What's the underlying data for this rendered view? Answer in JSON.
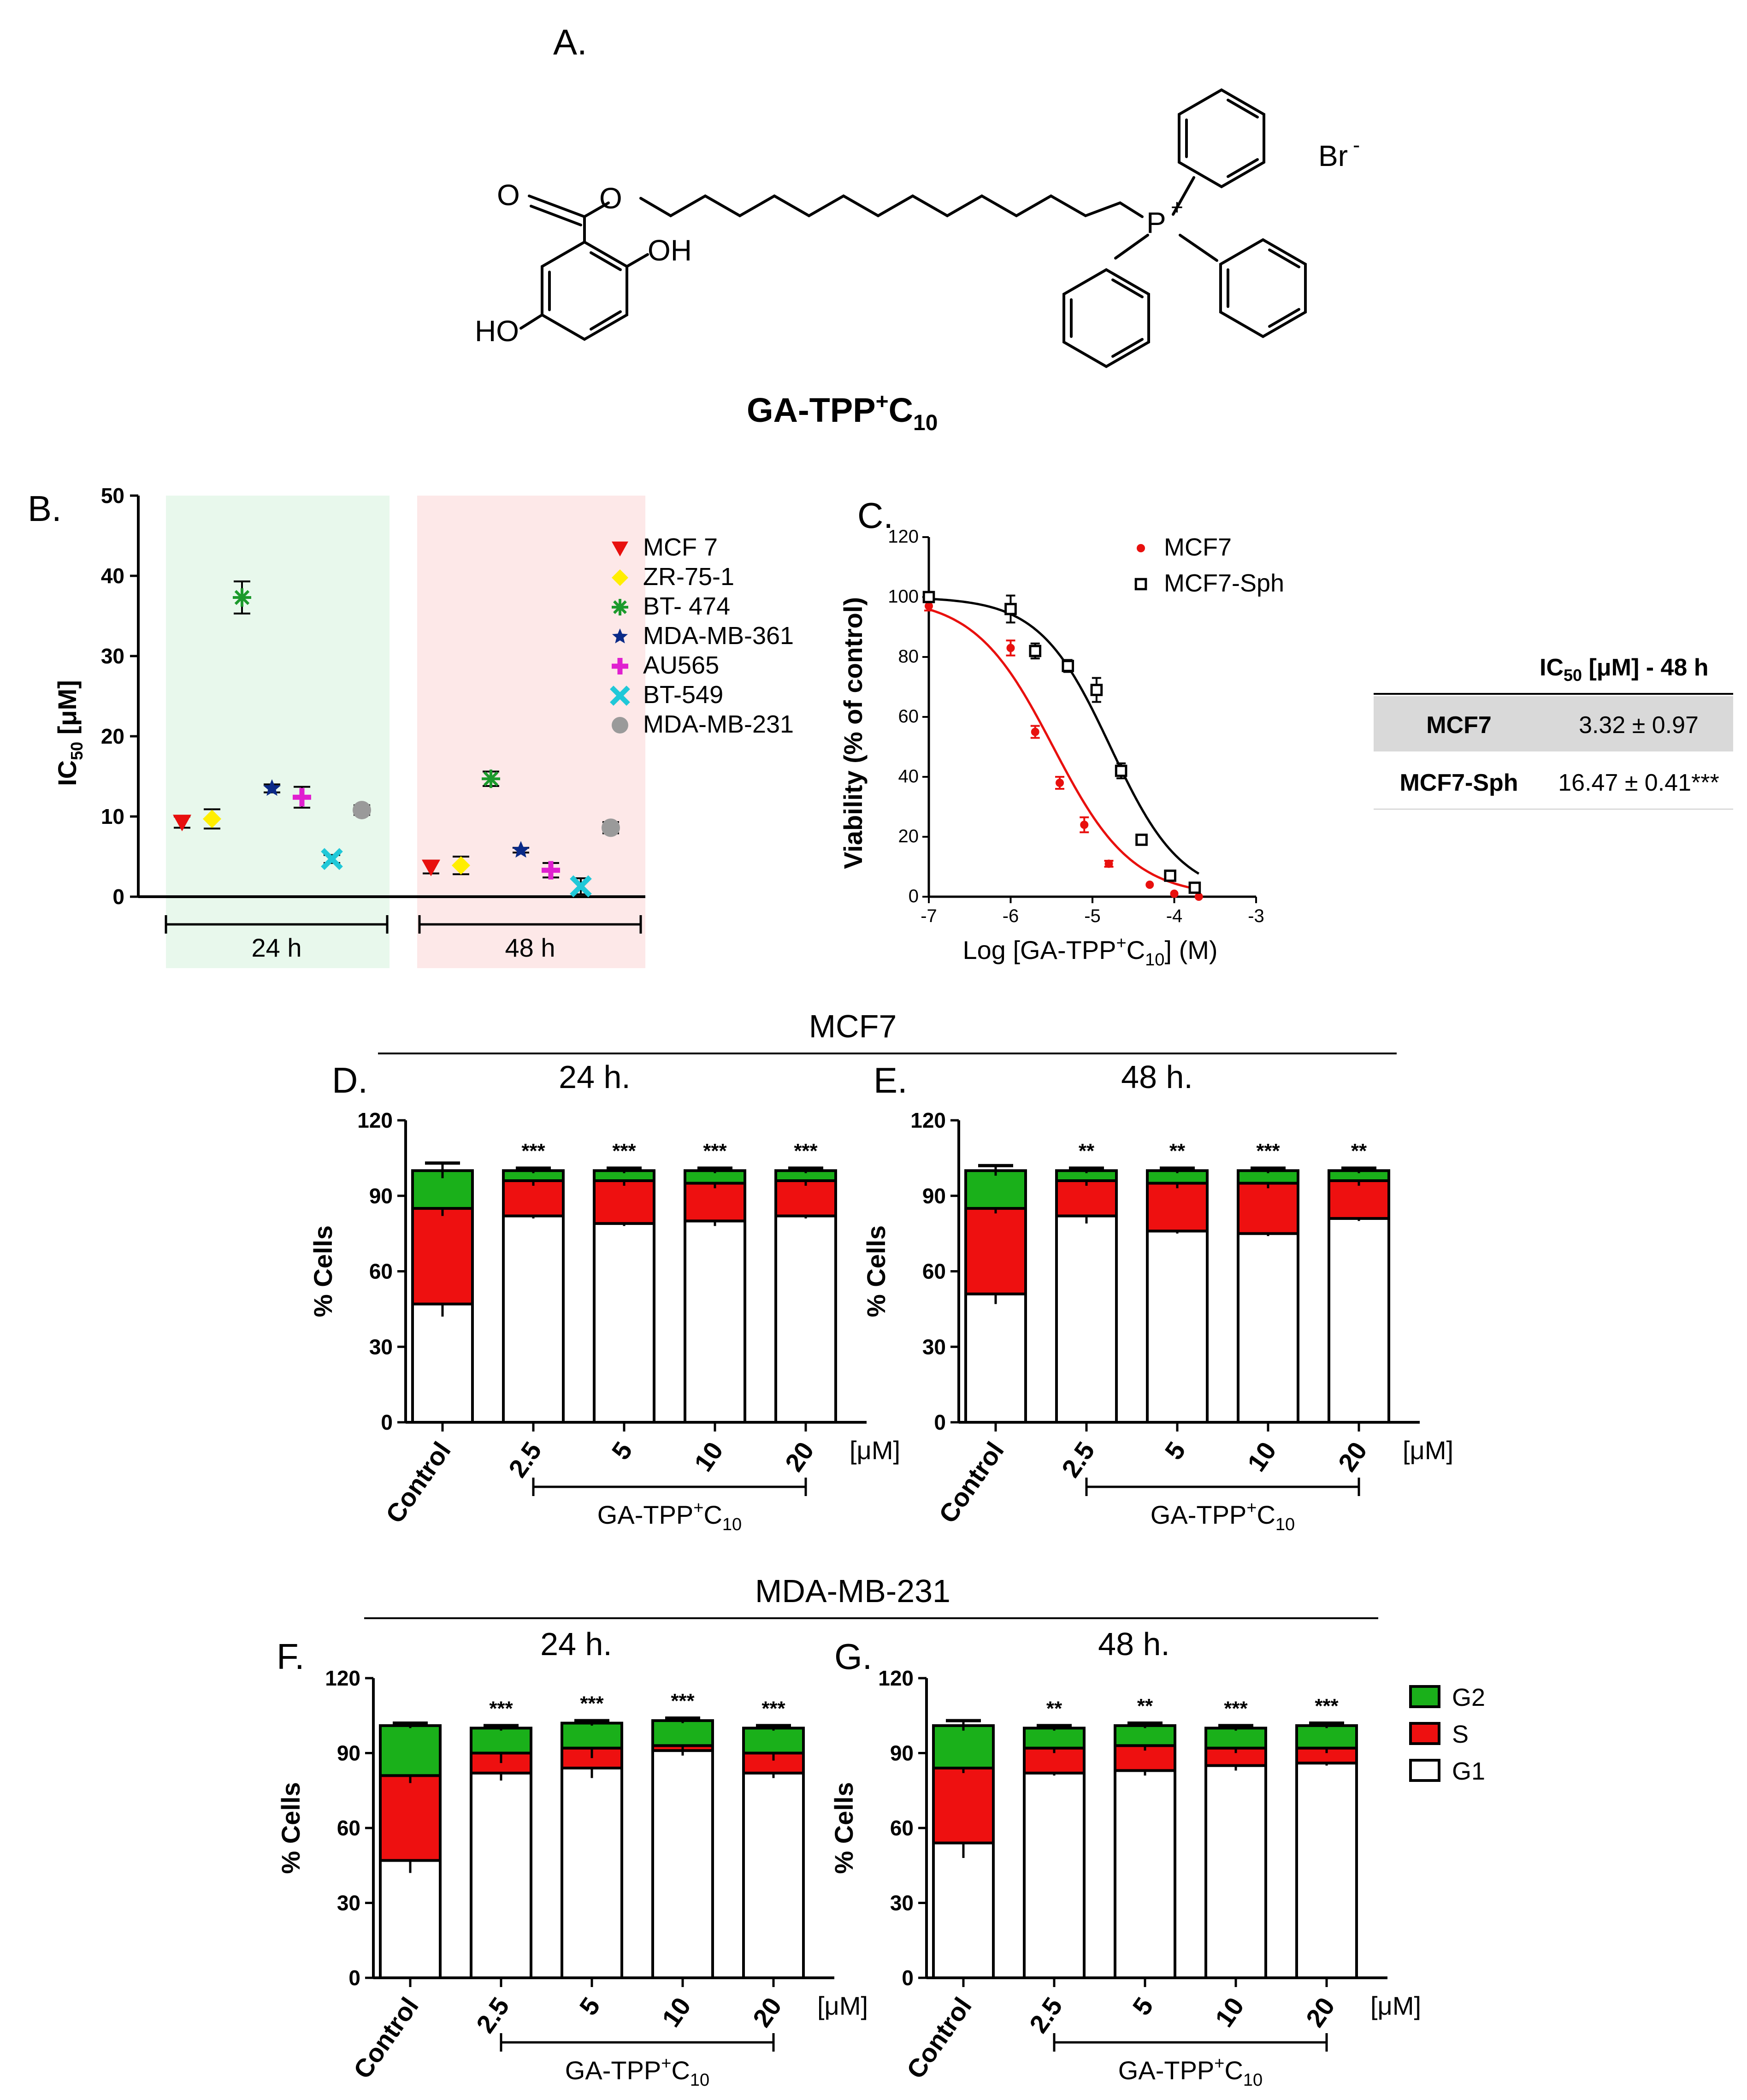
{
  "panel_labels": {
    "A": "A.",
    "B": "B.",
    "C": "C.",
    "D": "D.",
    "E": "E.",
    "F": "F.",
    "G": "G."
  },
  "structure": {
    "name_main": "GA-TPP",
    "name_sup": "+",
    "name_c": "C",
    "name_sub": "10",
    "atoms": {
      "O1": "O",
      "O2": "O",
      "OH": "OH",
      "HO": "HO",
      "P": "P",
      "P_charge": "+",
      "Br": "Br",
      "Br_charge": "-"
    }
  },
  "colors": {
    "MCF7_red": "#e8100e",
    "G2_green": "#1ab01a",
    "S_red": "#ee1010",
    "G1_white": "#ffffff",
    "bg24": "#e8f8ec",
    "bg48": "#fde8e8",
    "fit_black": "#000000",
    "table_grey": "#d9d9d9",
    "yellow": "#ffee00",
    "green_star": "#1c9a2c",
    "navy": "#0a2a88",
    "magenta": "#e020d0",
    "cyan": "#20c8d8",
    "grey": "#9a9a9a"
  },
  "chart_data": [
    {
      "id": "B",
      "type": "scatter",
      "ylabel_main": "IC",
      "ylabel_sub": "50",
      "ylabel_unit": " [μM]",
      "ylim": [
        0,
        50
      ],
      "yticks": [
        "0",
        "10",
        "20",
        "30",
        "40",
        "50"
      ],
      "groups": [
        "24 h",
        "48 h"
      ],
      "legend_position": "top-right",
      "series": [
        {
          "name": "MCF 7",
          "marker": "triangle-down",
          "color": "#e8100e",
          "values": [
            9.3,
            3.7
          ],
          "errors": [
            0.7,
            0.8
          ]
        },
        {
          "name": "ZR-75-1",
          "marker": "diamond",
          "color": "#ffee00",
          "values": [
            9.7,
            3.9
          ],
          "errors": [
            1.2,
            1.1
          ]
        },
        {
          "name": "BT- 474",
          "marker": "asterisk",
          "color": "#1c9a2c",
          "values": [
            37.3,
            14.7
          ],
          "errors": [
            2.0,
            0.9
          ]
        },
        {
          "name": "MDA-MB-361",
          "marker": "star",
          "color": "#0a2a88",
          "values": [
            13.5,
            5.8
          ],
          "errors": [
            0.5,
            0.3
          ]
        },
        {
          "name": "AU565",
          "marker": "plus",
          "color": "#e020d0",
          "values": [
            12.4,
            3.3
          ],
          "errors": [
            1.3,
            0.9
          ]
        },
        {
          "name": "BT-549",
          "marker": "x",
          "color": "#20c8d8",
          "values": [
            4.7,
            1.3
          ],
          "errors": [
            0.5,
            1.0
          ]
        },
        {
          "name": "MDA-MB-231",
          "marker": "circle",
          "color": "#9a9a9a",
          "values": [
            10.8,
            8.6
          ],
          "errors": [
            0.6,
            0.7
          ]
        }
      ]
    },
    {
      "id": "C",
      "type": "scatter",
      "xlabel_pre": "Log [GA-TPP",
      "xlabel_sup": "+",
      "xlabel_c": "C",
      "xlabel_sub": "10",
      "xlabel_post": "] (M)",
      "ylabel": "Viability (% of control)",
      "xlim": [
        -7,
        -3
      ],
      "ylim": [
        0,
        120
      ],
      "xticks": [
        "-7",
        "-6",
        "-5",
        "-4",
        "-3"
      ],
      "yticks": [
        "0",
        "20",
        "40",
        "60",
        "80",
        "100",
        "120"
      ],
      "legend_position": "top-right",
      "series": [
        {
          "name": "MCF7",
          "marker": "dot",
          "color": "#e8100e",
          "x": [
            -7.0,
            -6.0,
            -5.7,
            -5.4,
            -5.1,
            -4.8,
            -4.3,
            -4.0,
            -3.7
          ],
          "y": [
            97,
            83,
            55,
            38,
            24,
            11,
            4,
            1,
            0
          ],
          "errors": [
            1.5,
            2.5,
            2.0,
            2.0,
            2.5,
            1.0,
            0.5,
            0.5,
            0.5
          ],
          "fit": {
            "top": 100,
            "bottom": 0,
            "logIC50": -5.48,
            "hill": 0.9
          }
        },
        {
          "name": "MCF7-Sph",
          "marker": "open-square",
          "color": "#000000",
          "x": [
            -7.0,
            -6.0,
            -5.7,
            -5.3,
            -4.95,
            -4.65,
            -4.4,
            -4.05,
            -3.75
          ],
          "y": [
            100,
            96,
            82,
            77,
            69,
            42,
            19,
            7,
            3
          ],
          "errors": [
            1.5,
            4.5,
            2.5,
            2.0,
            4.0,
            2.5,
            1.0,
            1.0,
            1.5
          ],
          "fit": {
            "top": 100,
            "bottom": 0,
            "logIC50": -4.78,
            "hill": 1.0
          }
        }
      ]
    },
    {
      "id": "D",
      "type": "bar",
      "stacked": true,
      "title": "24 h.",
      "ylabel": "% Cells",
      "ylim": [
        0,
        120
      ],
      "yticks": [
        "0",
        "30",
        "60",
        "90",
        "120"
      ],
      "categories": [
        "Control",
        "2.5",
        "5",
        "10",
        "20"
      ],
      "unit": "[μM]",
      "treatment_main": "GA-TPP",
      "treatment_sup": "+",
      "treatment_c": "C",
      "treatment_sub": "10",
      "significance": [
        "",
        "***",
        "***",
        "***",
        "***"
      ],
      "series": [
        {
          "name": "G1",
          "color": "#ffffff",
          "values": [
            47,
            82,
            79,
            80,
            82
          ],
          "errors": [
            5,
            1,
            1,
            2,
            1
          ]
        },
        {
          "name": "S",
          "color": "#ee1010",
          "values": [
            38,
            14,
            17,
            15,
            14
          ],
          "errors": [
            3,
            2,
            2,
            2,
            2
          ]
        },
        {
          "name": "G2",
          "color": "#1ab01a",
          "values": [
            15,
            4,
            4,
            5,
            4
          ],
          "errors": [
            3,
            1,
            1,
            1,
            1
          ]
        }
      ]
    },
    {
      "id": "E",
      "type": "bar",
      "stacked": true,
      "title": "48 h.",
      "ylabel": "% Cells",
      "ylim": [
        0,
        120
      ],
      "yticks": [
        "0",
        "30",
        "60",
        "90",
        "120"
      ],
      "categories": [
        "Control",
        "2.5",
        "5",
        "10",
        "20"
      ],
      "unit": "[μM]",
      "treatment_main": "GA-TPP",
      "treatment_sup": "+",
      "treatment_c": "C",
      "treatment_sub": "10",
      "significance": [
        "",
        "**",
        "**",
        "***",
        "**"
      ],
      "series": [
        {
          "name": "G1",
          "color": "#ffffff",
          "values": [
            51,
            82,
            76,
            75,
            81
          ],
          "errors": [
            4,
            3,
            1,
            1,
            1
          ]
        },
        {
          "name": "S",
          "color": "#ee1010",
          "values": [
            34,
            14,
            19,
            20,
            15
          ],
          "errors": [
            2,
            2,
            2,
            2,
            2
          ]
        },
        {
          "name": "G2",
          "color": "#1ab01a",
          "values": [
            15,
            4,
            5,
            5,
            4
          ],
          "errors": [
            2,
            1,
            1,
            1,
            1
          ]
        }
      ]
    },
    {
      "id": "F",
      "type": "bar",
      "stacked": true,
      "title": "24 h.",
      "ylabel": "% Cells",
      "ylim": [
        0,
        120
      ],
      "yticks": [
        "0",
        "30",
        "60",
        "90",
        "120"
      ],
      "categories": [
        "Control",
        "2.5",
        "5",
        "10",
        "20"
      ],
      "unit": "[μM]",
      "treatment_main": "GA-TPP",
      "treatment_sup": "+",
      "treatment_c": "C",
      "treatment_sub": "10",
      "significance": [
        "",
        "***",
        "***",
        "***",
        "***"
      ],
      "series": [
        {
          "name": "G1",
          "color": "#ffffff",
          "values": [
            47,
            82,
            84,
            91,
            82
          ],
          "errors": [
            5,
            3,
            4,
            2,
            2
          ]
        },
        {
          "name": "S",
          "color": "#ee1010",
          "values": [
            34,
            8,
            8,
            2,
            8
          ],
          "errors": [
            3,
            4,
            4,
            2,
            3
          ]
        },
        {
          "name": "G2",
          "color": "#1ab01a",
          "values": [
            20,
            10,
            10,
            10,
            10
          ],
          "errors": [
            1,
            1,
            1,
            1,
            1
          ]
        }
      ]
    },
    {
      "id": "G",
      "type": "bar",
      "stacked": true,
      "title": "48 h.",
      "ylabel": "% Cells",
      "ylim": [
        0,
        120
      ],
      "yticks": [
        "0",
        "30",
        "60",
        "90",
        "120"
      ],
      "categories": [
        "Control",
        "2.5",
        "5",
        "10",
        "20"
      ],
      "unit": "[μM]",
      "treatment_main": "GA-TPP",
      "treatment_sup": "+",
      "treatment_c": "C",
      "treatment_sub": "10",
      "significance": [
        "",
        "**",
        "**",
        "***",
        "***"
      ],
      "series": [
        {
          "name": "G1",
          "color": "#ffffff",
          "values": [
            54,
            82,
            83,
            85,
            86
          ],
          "errors": [
            6,
            1,
            2,
            2,
            1
          ]
        },
        {
          "name": "S",
          "color": "#ee1010",
          "values": [
            30,
            10,
            10,
            7,
            6
          ],
          "errors": [
            2,
            2,
            2,
            2,
            2
          ]
        },
        {
          "name": "G2",
          "color": "#1ab01a",
          "values": [
            17,
            8,
            8,
            8,
            9
          ],
          "errors": [
            2,
            1,
            1,
            1,
            1
          ]
        }
      ]
    }
  ],
  "sections": {
    "top": "MCF7",
    "bottom": "MDA-MB-231"
  },
  "legend_cycle": [
    "G2",
    "S",
    "G1"
  ],
  "table": {
    "header_main": "IC",
    "header_sub": "50",
    "header_rest": " [μM] - 48 h",
    "rows": [
      {
        "label": "MCF7",
        "value": "3.32 ± 0.97"
      },
      {
        "label": "MCF7-Sph",
        "value": "16.47 ± 0.41***"
      }
    ]
  }
}
